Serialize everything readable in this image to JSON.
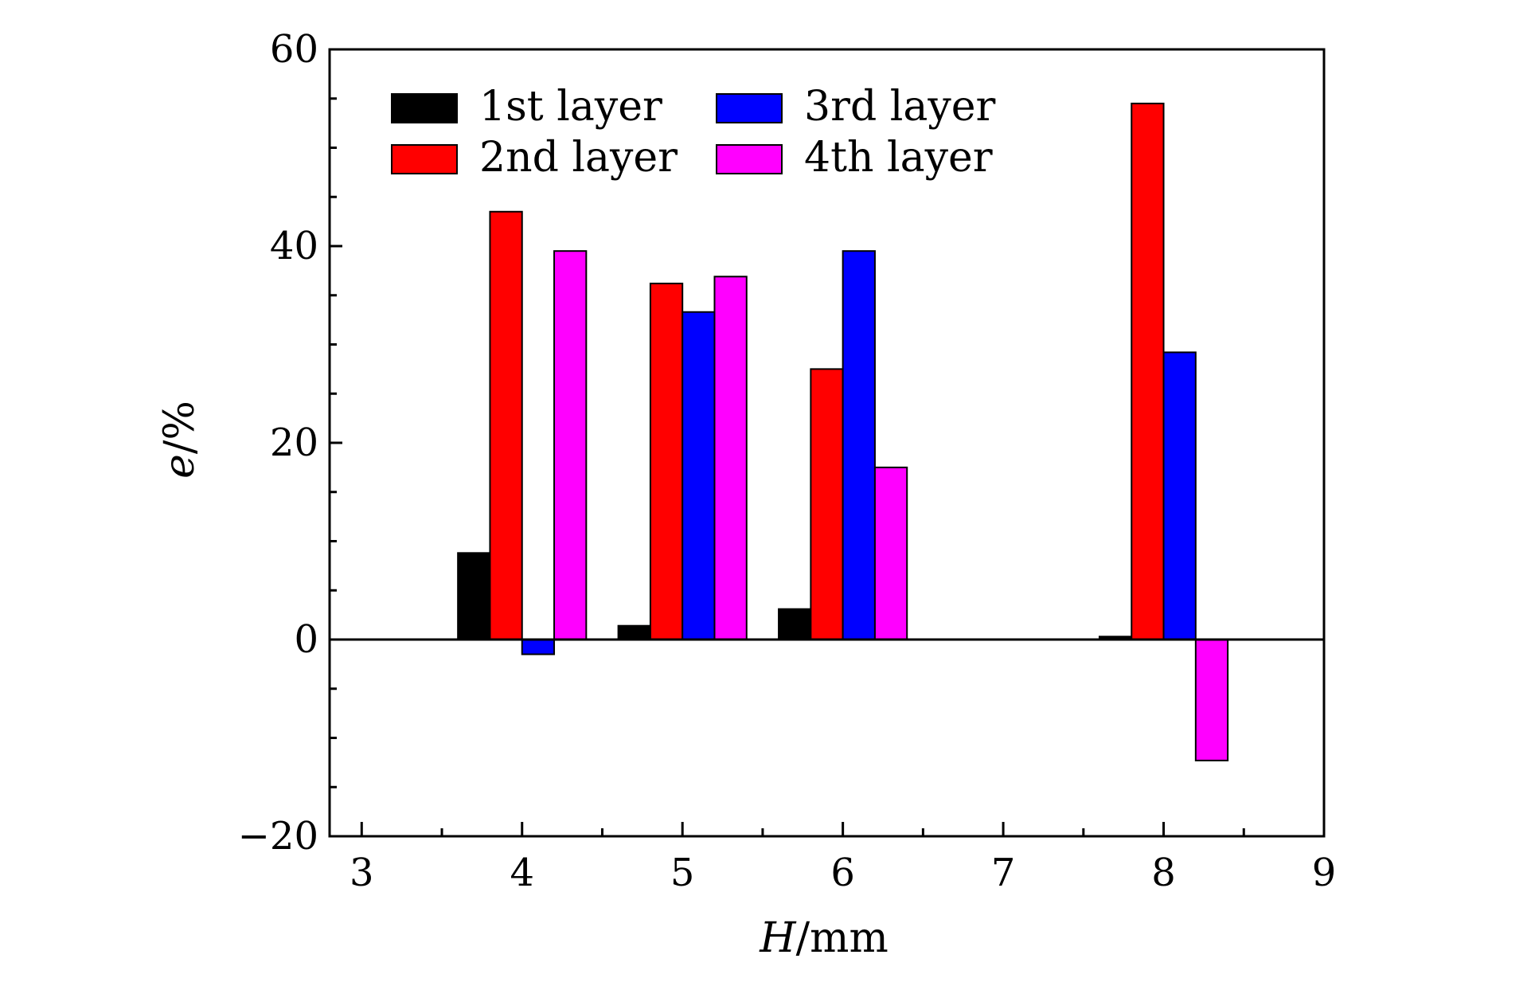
{
  "chart_data": {
    "type": "bar",
    "x": [
      4,
      5,
      6,
      8
    ],
    "x_tick_labels": [
      "3",
      "4",
      "5",
      "6",
      "7",
      "8",
      "9"
    ],
    "x_ticks": [
      3,
      4,
      5,
      6,
      7,
      8,
      9
    ],
    "y_tick_labels": [
      "60",
      "40",
      "20",
      "0",
      "−20"
    ],
    "y_ticks": [
      60,
      40,
      20,
      0,
      -20
    ],
    "xlim": [
      2.8,
      9
    ],
    "ylim": [
      -20,
      60
    ],
    "xlabel_italic": "H",
    "xlabel_rest": "/mm",
    "ylabel_italic": "e",
    "ylabel_rest": "/%",
    "grid": false,
    "legend_position": "top",
    "bar_width_data": 0.2,
    "series": [
      {
        "name": "1st layer",
        "color": "#000000",
        "values": [
          8.8,
          1.4,
          3.1,
          0.3
        ]
      },
      {
        "name": "2nd layer",
        "color": "#ff0000",
        "values": [
          43.5,
          36.2,
          27.5,
          54.5
        ]
      },
      {
        "name": "3rd layer",
        "color": "#0000ff",
        "values": [
          -1.5,
          33.3,
          39.5,
          29.2
        ]
      },
      {
        "name": "4th layer",
        "color": "#ff00ff",
        "values": [
          39.5,
          36.9,
          17.5,
          -12.3
        ]
      }
    ]
  }
}
